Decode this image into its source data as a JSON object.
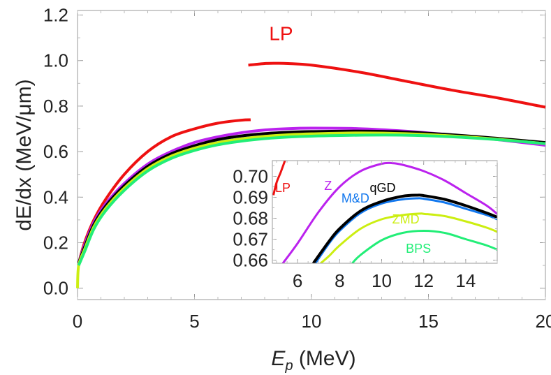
{
  "chart_data": [
    {
      "type": "line",
      "xlabel": "E",
      "xlabel_sub": "p",
      "xlabel_unit": " (MeV)",
      "ylabel": "dE/dx (MeV/μm)",
      "xlim": [
        0,
        20
      ],
      "ylim": [
        -0.05,
        1.22
      ],
      "xticks": [
        "0",
        "5",
        "10",
        "15",
        "20"
      ],
      "yticks": [
        "0.0",
        "0.2",
        "0.4",
        "0.6",
        "0.8",
        "1.0",
        "1.2"
      ],
      "xtick_values": [
        0,
        5,
        10,
        15,
        20
      ],
      "ytick_values": [
        0.0,
        0.2,
        0.4,
        0.6,
        0.8,
        1.0,
        1.2
      ],
      "grid": false,
      "annotations": [
        {
          "text": "LP",
          "color": "#ee1111",
          "x": 8.7,
          "y": 1.09
        }
      ],
      "series": [
        {
          "name": "",
          "color": "#ee1111",
          "x": [
            0.05,
            0.3,
            0.7,
            1.2,
            2,
            3,
            4,
            5,
            6,
            7,
            7.4
          ],
          "y": [
            0.11,
            0.2,
            0.3,
            0.39,
            0.5,
            0.6,
            0.665,
            0.7,
            0.725,
            0.738,
            0.74
          ]
        },
        {
          "name": "",
          "color": "#ee1111",
          "x": [
            7.3,
            8,
            8.5,
            9,
            10,
            12,
            14,
            16,
            18,
            20
          ],
          "y": [
            0.98,
            0.987,
            0.988,
            0.987,
            0.98,
            0.95,
            0.91,
            0.87,
            0.835,
            0.795
          ]
        },
        {
          "name": "",
          "color": "#bb22ee",
          "x": [
            0.05,
            0.3,
            0.7,
            1.2,
            2,
            3,
            4,
            5,
            6,
            7,
            8,
            9,
            10,
            12,
            14,
            16,
            18,
            20
          ],
          "y": [
            0.11,
            0.19,
            0.29,
            0.37,
            0.46,
            0.545,
            0.6,
            0.64,
            0.665,
            0.683,
            0.695,
            0.701,
            0.703,
            0.701,
            0.69,
            0.673,
            0.652,
            0.628
          ]
        },
        {
          "name": "",
          "color": "#1177ee",
          "x": [
            0.05,
            0.3,
            0.7,
            1.2,
            2,
            3,
            4,
            5,
            6,
            7,
            8,
            9,
            10,
            12,
            14,
            16,
            18,
            20
          ],
          "y": [
            0.11,
            0.18,
            0.28,
            0.36,
            0.45,
            0.535,
            0.59,
            0.625,
            0.652,
            0.668,
            0.678,
            0.684,
            0.687,
            0.689,
            0.684,
            0.672,
            0.656,
            0.638
          ]
        },
        {
          "name": "",
          "color": "#000000",
          "x": [
            0.05,
            0.3,
            0.7,
            1.2,
            2,
            3,
            4,
            5,
            6,
            7,
            8,
            9,
            10,
            12,
            14,
            16,
            18,
            20
          ],
          "y": [
            0.11,
            0.18,
            0.28,
            0.36,
            0.45,
            0.535,
            0.59,
            0.626,
            0.653,
            0.669,
            0.679,
            0.685,
            0.688,
            0.69,
            0.686,
            0.674,
            0.658,
            0.64
          ]
        },
        {
          "name": "",
          "color": "#ccee11",
          "x": [
            0.0,
            0.05,
            0.3,
            0.7,
            1.2,
            2,
            3,
            4,
            5,
            6,
            7,
            8,
            9,
            10,
            12,
            14,
            16,
            18,
            20
          ],
          "y": [
            0.0,
            0.1,
            0.17,
            0.27,
            0.35,
            0.44,
            0.525,
            0.58,
            0.615,
            0.64,
            0.656,
            0.667,
            0.674,
            0.678,
            0.682,
            0.679,
            0.669,
            0.654,
            0.635
          ]
        },
        {
          "name": "",
          "color": "#22ee77",
          "x": [
            0.05,
            0.3,
            0.7,
            1.2,
            2,
            3,
            4,
            5,
            6,
            7,
            8,
            9,
            10,
            12,
            14,
            16,
            18,
            20
          ],
          "y": [
            0.1,
            0.16,
            0.26,
            0.34,
            0.43,
            0.515,
            0.57,
            0.605,
            0.63,
            0.646,
            0.657,
            0.664,
            0.668,
            0.672,
            0.672,
            0.665,
            0.652,
            0.635
          ]
        }
      ]
    },
    {
      "type": "line",
      "title": "",
      "xlim": [
        4.8,
        15.5
      ],
      "ylim": [
        0.6585,
        0.7075
      ],
      "xticks": [
        "6",
        "8",
        "10",
        "12",
        "14"
      ],
      "yticks": [
        "0.66",
        "0.67",
        "0.68",
        "0.69",
        "0.70"
      ],
      "xtick_values": [
        6,
        8,
        10,
        12,
        14
      ],
      "ytick_values": [
        0.66,
        0.67,
        0.68,
        0.69,
        0.7
      ],
      "grid": false,
      "series": [
        {
          "name": "LP",
          "color": "#ee1111",
          "label_x": 5.3,
          "label_y": 0.6925,
          "x": [
            4.85,
            5.0,
            5.2,
            5.4
          ],
          "y": [
            0.691,
            0.697,
            0.702,
            0.7075
          ]
        },
        {
          "name": "Z",
          "color": "#bb22ee",
          "label_x": 7.45,
          "label_y": 0.6935,
          "x": [
            5.3,
            6,
            7,
            8,
            9,
            10,
            10.5,
            11,
            12,
            13,
            14,
            15,
            15.5
          ],
          "y": [
            0.6585,
            0.668,
            0.683,
            0.695,
            0.7025,
            0.706,
            0.7063,
            0.7055,
            0.7025,
            0.698,
            0.692,
            0.686,
            0.682
          ]
        },
        {
          "name": "M&D",
          "color": "#1177ee",
          "label_x": 8.75,
          "label_y": 0.6875,
          "x": [
            6.85,
            7.5,
            8,
            9,
            10,
            11,
            11.7,
            12,
            13,
            14,
            15,
            15.5
          ],
          "y": [
            0.6585,
            0.668,
            0.674,
            0.6825,
            0.687,
            0.689,
            0.6895,
            0.6893,
            0.6875,
            0.6845,
            0.6815,
            0.6795
          ]
        },
        {
          "name": "qGD",
          "color": "#000000",
          "label_x": 10.05,
          "label_y": 0.6925,
          "x": [
            6.75,
            7.5,
            8,
            9,
            10,
            11,
            11.7,
            12,
            13,
            14,
            15,
            15.5
          ],
          "y": [
            0.6585,
            0.669,
            0.675,
            0.6835,
            0.688,
            0.6905,
            0.691,
            0.6908,
            0.689,
            0.686,
            0.6825,
            0.6805
          ]
        },
        {
          "name": "ZMD",
          "color": "#ccee11",
          "label_x": 11.15,
          "label_y": 0.6775,
          "x": [
            7.1,
            7.5,
            8,
            9,
            10,
            11,
            11.8,
            12,
            13,
            14,
            15,
            15.5
          ],
          "y": [
            0.6585,
            0.662,
            0.667,
            0.675,
            0.6795,
            0.6815,
            0.6822,
            0.6821,
            0.681,
            0.6785,
            0.6755,
            0.6735
          ]
        },
        {
          "name": "BPS",
          "color": "#22ee77",
          "label_x": 11.75,
          "label_y": 0.6635,
          "x": [
            8.6,
            9,
            10,
            11,
            12,
            13,
            14,
            15,
            15.5
          ],
          "y": [
            0.6585,
            0.6625,
            0.6695,
            0.673,
            0.674,
            0.673,
            0.67,
            0.667,
            0.665
          ]
        }
      ]
    }
  ]
}
